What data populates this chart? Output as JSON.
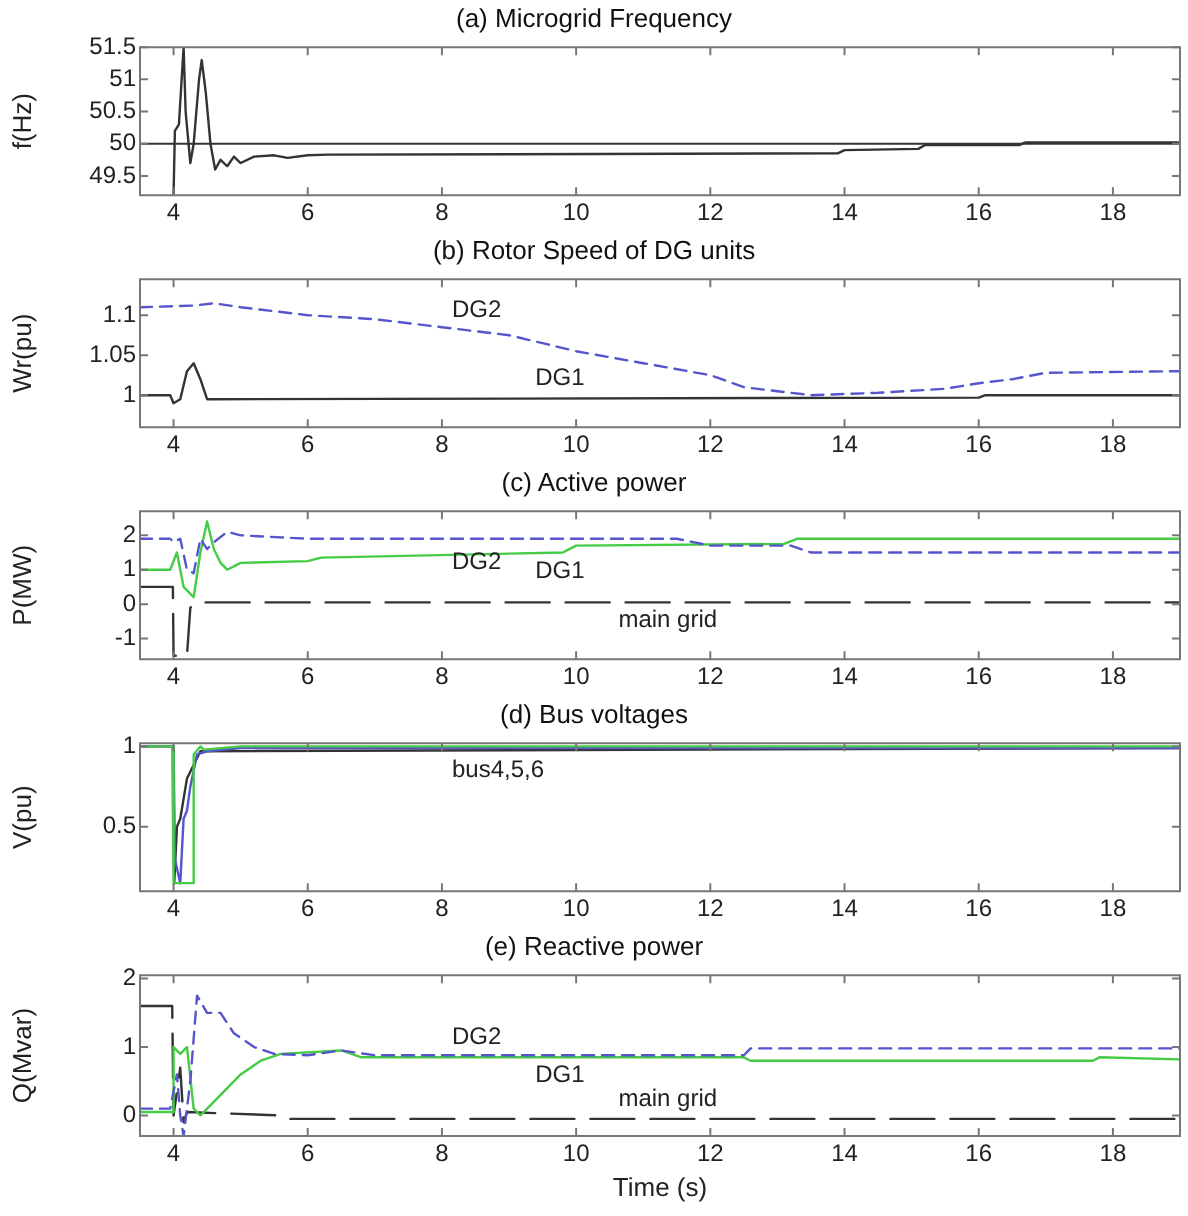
{
  "chart_data": [
    {
      "type": "line",
      "title": "(a) Microgrid Frequency",
      "ylabel": "f(Hz)",
      "xlim": [
        3.5,
        19
      ],
      "xticks": [
        4,
        6,
        8,
        10,
        12,
        14,
        16,
        18
      ],
      "ylim": [
        49.2,
        51.5
      ],
      "yticks": [
        49.5,
        50,
        50.5,
        51,
        51.5
      ],
      "grid": false,
      "legend": false,
      "marker": "none",
      "ref_lines": [
        {
          "axis": "y",
          "value": 50,
          "color": "#333333"
        }
      ],
      "series": [
        {
          "color": "#333333",
          "line_style": "solid",
          "x": [
            4.0,
            4.02,
            4.08,
            4.15,
            4.18,
            4.25,
            4.3,
            4.38,
            4.42,
            4.48,
            4.55,
            4.62,
            4.7,
            4.8,
            4.9,
            5.0,
            5.2,
            5.5,
            5.7,
            6.0,
            6.3,
            13.9,
            14.0,
            15.1,
            15.2,
            16.6,
            16.7,
            19
          ],
          "values": [
            49.2,
            50.2,
            50.3,
            51.5,
            50.5,
            49.7,
            50.0,
            51.0,
            51.3,
            50.8,
            50.0,
            49.6,
            49.75,
            49.65,
            49.8,
            49.7,
            49.8,
            49.82,
            49.78,
            49.82,
            49.83,
            49.85,
            49.9,
            49.92,
            49.98,
            49.98,
            50.02,
            50.02
          ]
        }
      ]
    },
    {
      "type": "line",
      "title": "(b) Rotor Speed of DG units",
      "ylabel": "Wr(pu)",
      "xlim": [
        3.5,
        19
      ],
      "xticks": [
        4,
        6,
        8,
        10,
        12,
        14,
        16,
        18
      ],
      "ylim": [
        0.96,
        1.145
      ],
      "yticks": [
        1,
        1.05,
        1.1
      ],
      "grid": false,
      "legend": false,
      "marker": "none",
      "series": [
        {
          "name": "DG2",
          "color": "#5555cc",
          "line_style": "dashed",
          "x": [
            3.5,
            4.3,
            4.6,
            5,
            6,
            7,
            8,
            9,
            10,
            11,
            12,
            12.5,
            13.5,
            14.5,
            15.5,
            16,
            16.5,
            17,
            19
          ],
          "values": [
            1.11,
            1.112,
            1.115,
            1.11,
            1.1,
            1.095,
            1.085,
            1.075,
            1.055,
            1.04,
            1.025,
            1.01,
            1.0,
            1.003,
            1.008,
            1.015,
            1.02,
            1.028,
            1.03
          ]
        },
        {
          "name": "DG1",
          "color": "#333333",
          "line_style": "solid",
          "x": [
            3.5,
            3.95,
            4.0,
            4.1,
            4.2,
            4.3,
            4.4,
            4.5,
            4.6,
            16,
            16.1,
            19
          ],
          "values": [
            1.0,
            1.0,
            0.99,
            0.995,
            1.03,
            1.04,
            1.02,
            0.995,
            0.995,
            0.997,
            1.0,
            1.0
          ]
        }
      ]
    },
    {
      "type": "line",
      "title": "(c) Active power",
      "ylabel": "P(MW)",
      "xlim": [
        3.5,
        19
      ],
      "xticks": [
        4,
        6,
        8,
        10,
        12,
        14,
        16,
        18
      ],
      "ylim": [
        -1.6,
        2.7
      ],
      "yticks": [
        -1,
        0,
        1,
        2
      ],
      "grid": false,
      "legend": false,
      "marker": "none",
      "series": [
        {
          "name": "DG2",
          "color": "#5555cc",
          "line_style": "dashed",
          "x": [
            3.5,
            3.95,
            4.0,
            4.1,
            4.2,
            4.3,
            4.4,
            4.5,
            4.6,
            4.8,
            5.0,
            6,
            11.5,
            12,
            13.2,
            13.5,
            19
          ],
          "values": [
            1.9,
            1.9,
            1.8,
            1.9,
            1.0,
            0.9,
            1.9,
            1.6,
            1.8,
            2.1,
            2.0,
            1.9,
            1.9,
            1.7,
            1.7,
            1.5,
            1.5
          ]
        },
        {
          "name": "DG1",
          "color": "#44cc44",
          "line_style": "solid",
          "x": [
            3.5,
            3.95,
            4.05,
            4.15,
            4.3,
            4.4,
            4.5,
            4.6,
            4.7,
            4.8,
            5.0,
            6,
            6.2,
            9.8,
            10,
            13.1,
            13.3,
            19
          ],
          "values": [
            1.0,
            1.0,
            1.5,
            0.5,
            0.2,
            1.5,
            2.4,
            1.6,
            1.2,
            1.0,
            1.2,
            1.25,
            1.35,
            1.5,
            1.7,
            1.75,
            1.9,
            1.9
          ]
        },
        {
          "name": "main grid",
          "color": "#333333",
          "line_style": "long-dashed",
          "x": [
            3.5,
            3.99,
            4.0,
            4.2,
            4.25,
            4.4,
            19
          ],
          "values": [
            0.5,
            0.5,
            -1.5,
            -1.5,
            -0.1,
            0.05,
            0.05
          ]
        }
      ]
    },
    {
      "type": "line",
      "title": "(d) Bus voltages",
      "ylabel": "V(pu)",
      "xlim": [
        3.5,
        19
      ],
      "xticks": [
        4,
        6,
        8,
        10,
        12,
        14,
        16,
        18
      ],
      "ylim": [
        0.1,
        1.02
      ],
      "yticks": [
        0.5,
        1
      ],
      "grid": false,
      "legend": false,
      "marker": "none",
      "series": [
        {
          "name": "bus4,5,6",
          "color": "#44cc44",
          "line_style": "solid",
          "x": [
            3.5,
            3.98,
            4.0,
            4.28,
            4.3,
            4.4,
            4.45,
            5,
            19
          ],
          "values": [
            1,
            1,
            0.15,
            0.15,
            0.95,
            1.0,
            0.98,
            1.0,
            1.0
          ]
        },
        {
          "color": "#5555cc",
          "line_style": "solid",
          "x": [
            3.5,
            4.0,
            4.02,
            4.1,
            4.15,
            4.2,
            4.25,
            4.35,
            4.5,
            5,
            19
          ],
          "values": [
            1,
            1,
            0.3,
            0.15,
            0.55,
            0.6,
            0.75,
            0.95,
            0.97,
            0.99,
            0.99
          ]
        },
        {
          "color": "#333333",
          "line_style": "solid",
          "x": [
            3.5,
            4.0,
            4.01,
            4.05,
            4.1,
            4.2,
            4.4,
            19
          ],
          "values": [
            1,
            1,
            0.15,
            0.5,
            0.55,
            0.8,
            0.97,
            0.99
          ]
        }
      ]
    },
    {
      "type": "line",
      "title": "(e) Reactive power",
      "ylabel": "Q(Mvar)",
      "xlabel": "Time (s)",
      "xlim": [
        3.5,
        19
      ],
      "xticks": [
        4,
        6,
        8,
        10,
        12,
        14,
        16,
        18
      ],
      "ylim": [
        -0.3,
        2.05
      ],
      "yticks": [
        0,
        1,
        2
      ],
      "grid": false,
      "legend": false,
      "marker": "none",
      "series": [
        {
          "name": "DG2",
          "color": "#5555cc",
          "line_style": "dashed",
          "x": [
            3.5,
            3.95,
            4.05,
            4.1,
            4.15,
            4.25,
            4.35,
            4.5,
            4.7,
            4.9,
            5.2,
            5.5,
            6,
            6.5,
            7,
            12.5,
            12.6,
            19
          ],
          "values": [
            0.1,
            0.1,
            0.6,
            0,
            -0.3,
            0.5,
            1.75,
            1.5,
            1.5,
            1.2,
            1.0,
            0.9,
            0.88,
            0.95,
            0.88,
            0.88,
            0.98,
            0.98
          ]
        },
        {
          "name": "DG1",
          "color": "#44cc44",
          "line_style": "solid",
          "x": [
            3.5,
            3.98,
            4.0,
            4.1,
            4.2,
            4.3,
            4.4,
            4.6,
            4.8,
            5.0,
            5.3,
            5.6,
            6.5,
            6.8,
            12.5,
            12.6,
            17.7,
            17.8,
            19
          ],
          "values": [
            0.05,
            0.05,
            1.0,
            0.9,
            1.0,
            0.1,
            0,
            0.2,
            0.4,
            0.6,
            0.8,
            0.9,
            0.95,
            0.85,
            0.85,
            0.8,
            0.8,
            0.85,
            0.82
          ]
        },
        {
          "name": "main grid",
          "color": "#333333",
          "line_style": "long-dashed",
          "x": [
            3.5,
            3.98,
            4.0,
            4.1,
            4.15,
            4.2,
            5.6,
            5.7,
            19
          ],
          "values": [
            1.6,
            1.6,
            0,
            0.7,
            -0.1,
            0.05,
            0.0,
            -0.05,
            -0.05
          ]
        }
      ]
    }
  ]
}
